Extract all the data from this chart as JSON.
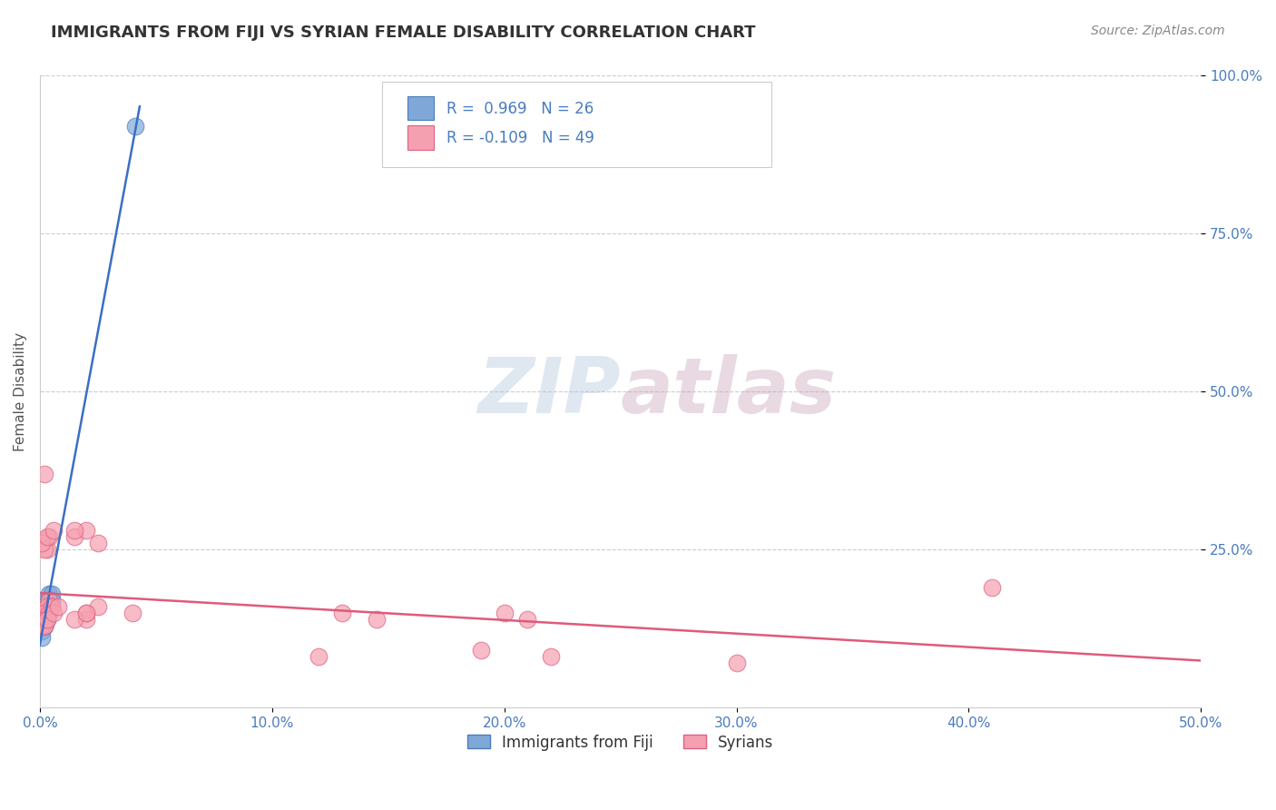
{
  "title": "IMMIGRANTS FROM FIJI VS SYRIAN FEMALE DISABILITY CORRELATION CHART",
  "source": "Source: ZipAtlas.com",
  "ylabel": "Female Disability",
  "xlim": [
    0.0,
    0.5
  ],
  "ylim": [
    0.0,
    1.0
  ],
  "xtick_labels": [
    "0.0%",
    "10.0%",
    "20.0%",
    "30.0%",
    "40.0%",
    "50.0%"
  ],
  "xtick_values": [
    0.0,
    0.1,
    0.2,
    0.3,
    0.4,
    0.5
  ],
  "ytick_labels": [
    "100.0%",
    "75.0%",
    "50.0%",
    "25.0%"
  ],
  "ytick_values": [
    1.0,
    0.75,
    0.5,
    0.25
  ],
  "fiji_color": "#7fa8d8",
  "fiji_edge_color": "#4a7cbf",
  "syrian_color": "#f5a0b0",
  "syrian_edge_color": "#e06080",
  "fiji_R": 0.969,
  "fiji_N": 26,
  "syrian_R": -0.109,
  "syrian_N": 49,
  "fiji_line_color": "#3a6fc4",
  "syrian_line_color": "#e05a7a",
  "watermark_zip": "ZIP",
  "watermark_atlas": "atlas",
  "background_color": "#ffffff",
  "fiji_x": [
    0.001,
    0.002,
    0.001,
    0.003,
    0.002,
    0.002,
    0.001,
    0.003,
    0.002,
    0.001,
    0.004,
    0.005,
    0.003,
    0.002,
    0.004,
    0.003,
    0.001,
    0.002,
    0.003,
    0.004,
    0.005,
    0.002,
    0.003,
    0.001,
    0.041,
    0.002
  ],
  "fiji_y": [
    0.14,
    0.15,
    0.13,
    0.16,
    0.17,
    0.14,
    0.12,
    0.15,
    0.13,
    0.16,
    0.18,
    0.17,
    0.14,
    0.13,
    0.16,
    0.15,
    0.14,
    0.15,
    0.16,
    0.17,
    0.18,
    0.14,
    0.15,
    0.11,
    0.92,
    0.13
  ],
  "syrian_x": [
    0.001,
    0.003,
    0.002,
    0.004,
    0.001,
    0.002,
    0.003,
    0.005,
    0.002,
    0.001,
    0.003,
    0.004,
    0.002,
    0.001,
    0.003,
    0.006,
    0.002,
    0.004,
    0.003,
    0.002,
    0.001,
    0.002,
    0.004,
    0.003,
    0.002,
    0.005,
    0.003,
    0.006,
    0.008,
    0.002,
    0.04,
    0.02,
    0.015,
    0.02,
    0.025,
    0.02,
    0.015,
    0.025,
    0.02,
    0.015,
    0.41,
    0.3,
    0.12,
    0.13,
    0.145,
    0.2,
    0.21,
    0.22,
    0.19
  ],
  "syrian_y": [
    0.14,
    0.15,
    0.16,
    0.17,
    0.13,
    0.14,
    0.15,
    0.16,
    0.13,
    0.14,
    0.25,
    0.27,
    0.25,
    0.26,
    0.27,
    0.28,
    0.14,
    0.15,
    0.16,
    0.15,
    0.13,
    0.14,
    0.15,
    0.14,
    0.13,
    0.16,
    0.14,
    0.15,
    0.16,
    0.37,
    0.15,
    0.14,
    0.27,
    0.28,
    0.26,
    0.15,
    0.14,
    0.16,
    0.15,
    0.28,
    0.19,
    0.07,
    0.08,
    0.15,
    0.14,
    0.15,
    0.14,
    0.08,
    0.09
  ],
  "legend_fiji_label": "Immigrants from Fiji",
  "legend_syrian_label": "Syrians"
}
